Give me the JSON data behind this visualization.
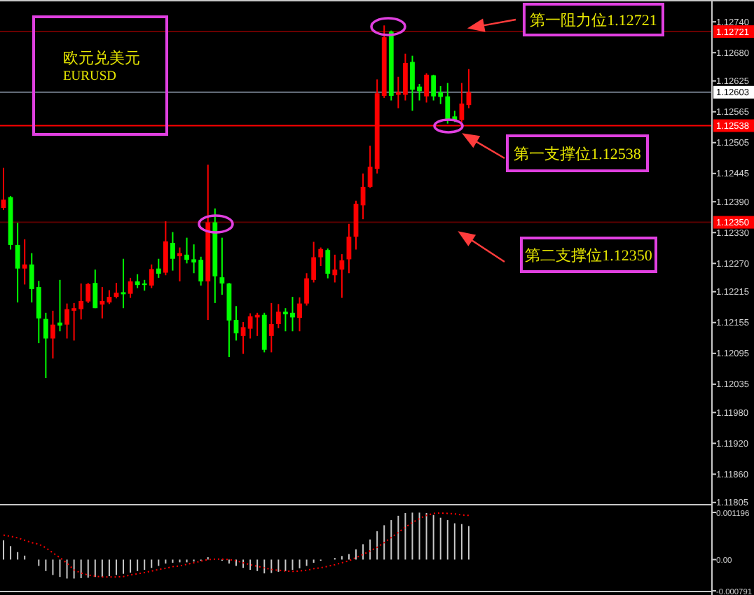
{
  "chart_data": [
    {
      "type": "candlestick",
      "categories": [
        null,
        null,
        null,
        null,
        null,
        null,
        null,
        null,
        null,
        null,
        null,
        null,
        null,
        null,
        null,
        null,
        null,
        null,
        null,
        null,
        null,
        null,
        null,
        null,
        null,
        null,
        null,
        null,
        null,
        null,
        null,
        null,
        null,
        null,
        null,
        null,
        null,
        null,
        null,
        null,
        null,
        null,
        null,
        null,
        null,
        null,
        null,
        null,
        null,
        null,
        null,
        null,
        null,
        null,
        null,
        null,
        null,
        null,
        null,
        null,
        null,
        null,
        null,
        null,
        null,
        null,
        null,
        null,
        null,
        null,
        null,
        null,
        null,
        null,
        null,
        null,
        null,
        null,
        null,
        null,
        null,
        null,
        null,
        null,
        null,
        null,
        null,
        null,
        null,
        null,
        null,
        null,
        null,
        null,
        null,
        null,
        null,
        null,
        null,
        null,
        null
      ],
      "ohlc": [
        [
          1.12378,
          1.12456,
          1.12374,
          1.12394
        ],
        [
          1.12399,
          1.12401,
          1.12297,
          1.12306
        ],
        [
          1.12306,
          1.12349,
          1.12194,
          1.1226
        ],
        [
          1.1226,
          1.12317,
          1.12229,
          1.12268
        ],
        [
          1.12268,
          1.1229,
          1.12194,
          1.1222
        ],
        [
          1.12224,
          1.12236,
          1.12115,
          1.12163
        ],
        [
          1.12162,
          1.12174,
          1.12047,
          1.12124
        ],
        [
          1.12124,
          1.12178,
          1.12085,
          1.12151
        ],
        [
          1.12155,
          1.12238,
          1.12138,
          1.12149
        ],
        [
          1.12151,
          1.12192,
          1.12124,
          1.12181
        ],
        [
          1.12178,
          1.12193,
          1.1212,
          1.12183
        ],
        [
          1.12181,
          1.12231,
          1.12161,
          1.12197
        ],
        [
          1.12196,
          1.12232,
          1.12193,
          1.1223
        ],
        [
          1.12232,
          1.12258,
          1.12183,
          1.12183
        ],
        [
          1.1219,
          1.12224,
          1.12163,
          1.12197
        ],
        [
          1.12194,
          1.12218,
          1.12191,
          1.12205
        ],
        [
          1.12205,
          1.12232,
          1.12202,
          1.12213
        ],
        [
          1.12214,
          1.12279,
          1.12183,
          1.1221
        ],
        [
          1.12211,
          1.12242,
          1.12203,
          1.12235
        ],
        [
          1.12235,
          1.12249,
          1.12222,
          1.12228
        ],
        [
          1.12231,
          1.12238,
          1.12217,
          1.12228
        ],
        [
          1.12227,
          1.12268,
          1.12222,
          1.12259
        ],
        [
          1.1226,
          1.12279,
          1.12242,
          1.1225
        ],
        [
          1.12252,
          1.12352,
          1.12247,
          1.12313
        ],
        [
          1.1231,
          1.12331,
          1.12256,
          1.12279
        ],
        [
          1.12284,
          1.12301,
          1.12235,
          1.1229
        ],
        [
          1.12287,
          1.1232,
          1.1227,
          1.12277
        ],
        [
          1.12278,
          1.12307,
          1.12251,
          1.12272
        ],
        [
          1.12277,
          1.12283,
          1.12227,
          1.12235
        ],
        [
          1.12235,
          1.12462,
          1.1216,
          1.1235
        ],
        [
          1.1235,
          1.12377,
          1.12193,
          1.12245
        ],
        [
          1.12243,
          1.1232,
          1.12209,
          1.12231
        ],
        [
          1.12231,
          1.12232,
          1.12088,
          1.12159
        ],
        [
          1.1216,
          1.12187,
          1.1212,
          1.12134
        ],
        [
          1.12129,
          1.12156,
          1.12094,
          1.12146
        ],
        [
          1.12143,
          1.12173,
          1.12124,
          1.12167
        ],
        [
          1.12165,
          1.12174,
          1.12129,
          1.1217
        ],
        [
          1.1217,
          1.12174,
          1.12097,
          1.12102
        ],
        [
          1.12129,
          1.12193,
          1.12097,
          1.12152
        ],
        [
          1.12152,
          1.12191,
          1.12144,
          1.12176
        ],
        [
          1.12176,
          1.12183,
          1.12138,
          1.12171
        ],
        [
          1.12174,
          1.12205,
          1.12138,
          1.12165
        ],
        [
          1.12164,
          1.12204,
          1.12138,
          1.12192
        ],
        [
          1.12192,
          1.12251,
          1.12188,
          1.12241
        ],
        [
          1.12238,
          1.12312,
          1.12233,
          1.12282
        ],
        [
          1.12282,
          1.12301,
          1.12265,
          1.12298
        ],
        [
          1.12296,
          1.12299,
          1.12241,
          1.1225
        ],
        [
          1.12247,
          1.12287,
          1.12233,
          1.12258
        ],
        [
          1.12258,
          1.12288,
          1.12203,
          1.12276
        ],
        [
          1.12278,
          1.12347,
          1.12251,
          1.12322
        ],
        [
          1.12322,
          1.12392,
          1.12297,
          1.12386
        ],
        [
          1.12383,
          1.12445,
          1.12356,
          1.12419
        ],
        [
          1.12419,
          1.12499,
          1.12417,
          1.12458
        ],
        [
          1.12454,
          1.12628,
          1.12445,
          1.12601
        ],
        [
          1.12596,
          1.12733,
          1.12592,
          1.1271
        ],
        [
          1.12721,
          1.12723,
          1.12587,
          1.12596
        ],
        [
          1.12598,
          1.12633,
          1.12572,
          1.12603
        ],
        [
          1.12598,
          1.12678,
          1.12587,
          1.1266
        ],
        [
          1.12662,
          1.12674,
          1.12567,
          1.12608
        ],
        [
          1.12614,
          1.12619,
          1.12587,
          1.12605
        ],
        [
          1.12595,
          1.1264,
          1.12583,
          1.12637
        ],
        [
          1.12636,
          1.12637,
          1.12587,
          1.12595
        ],
        [
          1.12603,
          1.12615,
          1.1258,
          1.12594
        ],
        [
          1.12595,
          1.12621,
          1.12542,
          1.12549
        ],
        [
          1.12556,
          1.12567,
          1.12545,
          1.12548
        ],
        [
          1.12549,
          1.12621,
          1.12545,
          1.12581
        ],
        [
          1.12578,
          1.12648,
          1.12572,
          1.12603
        ],
        null,
        null,
        null,
        null,
        null,
        null,
        null,
        null,
        null,
        null,
        null,
        null,
        null,
        null,
        null,
        null,
        null,
        null,
        null,
        null,
        null,
        null,
        null,
        null,
        null,
        null,
        null,
        null,
        null,
        null,
        null,
        null,
        null,
        null
      ],
      "colors": [
        "#ff0000",
        "#00ff00",
        "#00ff00",
        "#ff0000",
        "#00ff00",
        "#00ff00",
        "#00ff00",
        "#ff0000",
        "#00ff00",
        "#ff0000",
        "#ff0000",
        "#ff0000",
        "#ff0000",
        "#00ff00",
        "#ff0000",
        "#ff0000",
        "#ff0000",
        "#00ff00",
        "#ff0000",
        "#00ff00",
        "#00ff00",
        "#ff0000",
        "#00ff00",
        "#ff0000",
        "#00ff00",
        "#ff0000",
        "#00ff00",
        "#00ff00",
        "#00ff00",
        "#ff0000",
        "#00ff00",
        "#00ff00",
        "#00ff00",
        "#00ff00",
        "#ff0000",
        "#ff0000",
        "#ff0000",
        "#00ff00",
        "#ff0000",
        "#ff0000",
        "#00ff00",
        "#00ff00",
        "#ff0000",
        "#ff0000",
        "#ff0000",
        "#ff0000",
        "#00ff00",
        "#ff0000",
        "#ff0000",
        "#ff0000",
        "#ff0000",
        "#ff0000",
        "#ff0000",
        "#ff0000",
        "#ff0000",
        "#00ff00",
        "#ff0000",
        "#ff0000",
        "#00ff00",
        "#00ff00",
        "#ff0000",
        "#00ff00",
        "#00ff00",
        "#00ff00",
        "#00ff00",
        "#ff0000",
        "#ff0000",
        null,
        null,
        null,
        null,
        null,
        null,
        null,
        null,
        null,
        null,
        null,
        null,
        null,
        null,
        null,
        null,
        null,
        null,
        null,
        null,
        null,
        null,
        null,
        null,
        null,
        null,
        null,
        null,
        null,
        null,
        null,
        null,
        null,
        null
      ],
      "ylim": [
        1.11802,
        1.12777
      ],
      "yticks": [
        {
          "value": 1.1274,
          "label": "1.12740"
        },
        {
          "value": 1.1268,
          "label": "1.12680"
        },
        1.12625,
        1.12565,
        1.12505,
        1.12445,
        {
          "value": 1.1239,
          "label": "1.12390"
        },
        {
          "value": 1.1233,
          "label": "1.12330"
        },
        {
          "value": 1.1227,
          "label": "1.12270"
        },
        1.12215,
        1.12155,
        1.12095,
        1.12035,
        {
          "value": 1.1198,
          "label": "1.11980"
        },
        {
          "value": 1.1192,
          "label": "1.11920"
        },
        {
          "value": 1.1186,
          "label": "1.11860"
        },
        1.11805
      ],
      "ref_lines": [
        {
          "axis": "y",
          "value": 1.12721,
          "label": "1.12721",
          "color": "#6b0000"
        },
        {
          "axis": "y",
          "value": 1.12603,
          "label": "1.12603",
          "color": "#707a88"
        },
        {
          "axis": "y",
          "value": 1.12538,
          "label": "1.12538",
          "color": "#ff0000"
        },
        {
          "axis": "y",
          "value": 1.1235,
          "label": "1.12350",
          "color": "#5a0000"
        }
      ],
      "annotations": [
        "欧元兑美元",
        "EURUSD",
        "第一阻力位1.12721",
        "第一支撑位1.12538",
        "第二支撑位1.12350"
      ]
    },
    {
      "type": "bar",
      "categories": [
        null,
        null,
        null,
        null,
        null,
        null,
        null,
        null,
        null,
        null,
        null,
        null,
        null,
        null,
        null,
        null,
        null,
        null,
        null,
        null,
        null,
        null,
        null,
        null,
        null,
        null,
        null,
        null,
        null,
        null,
        null,
        null,
        null,
        null,
        null,
        null,
        null,
        null,
        null,
        null,
        null,
        null,
        null,
        null,
        null,
        null,
        null,
        null,
        null,
        null,
        null,
        null,
        null,
        null,
        null,
        null,
        null,
        null,
        null,
        null,
        null,
        null,
        null,
        null,
        null,
        null,
        null,
        null,
        null,
        null,
        null,
        null,
        null,
        null,
        null,
        null,
        null,
        null,
        null,
        null,
        null,
        null,
        null,
        null,
        null,
        null,
        null,
        null,
        null,
        null,
        null,
        null,
        null,
        null,
        null,
        null,
        null,
        null,
        null,
        null,
        null
      ],
      "series": [
        {
          "type": "bar",
          "color": "#c8c8c8",
          "values": [
            0.00049,
            0.00034,
            0.00019,
            0.0001,
            null,
            -0.00016,
            -0.00029,
            -0.00039,
            -0.00044,
            -0.00048,
            -0.00048,
            -0.00047,
            -0.00046,
            -0.00044,
            -0.00044,
            -0.00042,
            -0.00039,
            -0.00036,
            -0.00033,
            -0.00029,
            -0.00026,
            -0.00021,
            -0.00016,
            -0.0001,
            -8e-05,
            -7e-05,
            -7e-05,
            -5e-05,
            -3e-05,
            6e-05,
            null,
            -3e-05,
            -0.0001,
            -0.00016,
            -0.00021,
            -0.00026,
            -0.00029,
            -0.00035,
            -0.00034,
            -0.00031,
            -0.00029,
            -0.00026,
            -0.00022,
            -0.00016,
            -8e-05,
            -3e-05,
            null,
            4e-05,
            9e-05,
            0.00014,
            0.00026,
            0.00039,
            0.00051,
            0.00072,
            0.00087,
            0.001,
            0.00111,
            0.00118,
            0.00119,
            0.00119,
            0.00118,
            0.00113,
            0.00106,
            0.001,
            0.00092,
            0.0009,
            0.00085,
            null,
            null,
            null,
            null,
            null,
            null,
            null,
            null,
            null,
            null,
            null,
            null,
            null,
            null,
            null,
            null,
            null,
            null,
            null,
            null,
            null,
            null,
            null,
            null,
            null,
            null,
            null,
            null,
            null,
            null,
            null,
            null,
            null,
            null
          ]
        },
        {
          "type": "line",
          "color": "#ff0000",
          "line_style": "dotted",
          "values": [
            0.00062,
            0.00059,
            0.00055,
            0.00049,
            0.00043,
            0.00039,
            0.0003,
            0.00017,
            5e-05,
            -9e-05,
            -0.00026,
            -0.00034,
            -0.00039,
            -0.00042,
            -0.00044,
            -0.00044,
            -0.00044,
            -0.00043,
            -0.00039,
            -0.00036,
            -0.00033,
            -0.00029,
            -0.00025,
            -0.00022,
            -0.00018,
            -0.00016,
            -0.00012,
            -8e-05,
            -4e-05,
            0,
            1e-05,
            1e-05,
            0,
            -3e-05,
            -8e-05,
            -0.00013,
            -0.00017,
            -0.00021,
            -0.00025,
            -0.00027,
            -0.00029,
            -0.0003,
            -0.00029,
            -0.00027,
            -0.00023,
            -0.00021,
            -0.00017,
            -0.00013,
            -8e-05,
            -3e-05,
            5e-05,
            0.00013,
            0.00022,
            0.00031,
            0.00043,
            0.00056,
            0.00069,
            0.00082,
            0.00094,
            0.00104,
            0.00112,
            0.00117,
            0.00118,
            0.00117,
            0.00116,
            0.00113,
            0.00112,
            null,
            null,
            null,
            null,
            null,
            null,
            null,
            null,
            null,
            null,
            null,
            null,
            null,
            null,
            null,
            null,
            null,
            null,
            null,
            null,
            null,
            null,
            null,
            null,
            null,
            null,
            null,
            null,
            null,
            null,
            null,
            null,
            null,
            null
          ]
        }
      ],
      "ylim": [
        -0.000791,
        0.001196
      ],
      "yticks": [
        {
          "value": 0.001196,
          "label": "0.001196"
        },
        {
          "value": 0,
          "label": "0.00"
        },
        {
          "value": -0.000791,
          "label": "-0.000791"
        }
      ]
    }
  ]
}
